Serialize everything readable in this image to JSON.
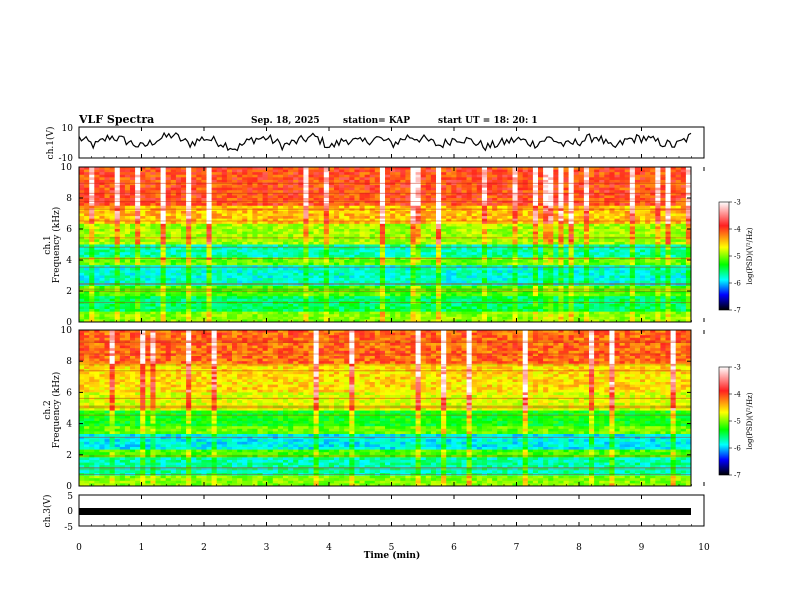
{
  "header": {
    "title": "VLF Spectra",
    "date": "Sep. 18, 2025",
    "station": "station= KAP",
    "start": "start  UT  =   18: 20: 1"
  },
  "colorbar": {
    "label": "log(PSD)(V²/Hz)",
    "ticks": [
      "-3",
      "-4",
      "-5",
      "-6",
      "-7"
    ],
    "colors": [
      "#ffffff",
      "#ff2020",
      "#ffff00",
      "#00ff00",
      "#00ffff",
      "#0000ff",
      "#000000"
    ]
  },
  "chart_data": [
    {
      "type": "line",
      "panel": "ch1-waveform",
      "ylabel": "ch.1(V)",
      "ytick_labels": [
        "10",
        "-10"
      ],
      "ylim": [
        -10,
        10
      ],
      "xlim": [
        0,
        10
      ],
      "series": [
        {
          "values": [
            3,
            -2,
            4,
            1,
            -3,
            2,
            5,
            -1,
            3,
            0,
            -4,
            2,
            3,
            -2,
            1,
            4,
            -3,
            2,
            0,
            3,
            -1,
            4,
            2,
            -2,
            3,
            1,
            -3,
            0,
            2,
            -1,
            3,
            -2,
            1,
            4,
            -4,
            2,
            3,
            0,
            -2,
            4
          ]
        }
      ]
    },
    {
      "type": "heatmap",
      "panel": "ch1-spectrogram",
      "ylabel": "ch.1\nFrequency (kHz)",
      "ytick_labels": [
        "0",
        "2",
        "4",
        "6",
        "8",
        "10"
      ],
      "ylim": [
        0,
        10
      ],
      "xlim": [
        0,
        10
      ],
      "bands_log_psd": [
        {
          "f": [
            0,
            0.6
          ],
          "v": -4.6
        },
        {
          "f": [
            0.6,
            1.7
          ],
          "v": -5.2
        },
        {
          "f": [
            1.7,
            2.4
          ],
          "v": -4.8
        },
        {
          "f": [
            2.4,
            3.6
          ],
          "v": -5.5
        },
        {
          "f": [
            3.6,
            4.2
          ],
          "v": -4.7
        },
        {
          "f": [
            4.2,
            5.0
          ],
          "v": -5.4
        },
        {
          "f": [
            5.0,
            6.3
          ],
          "v": -4.5
        },
        {
          "f": [
            6.3,
            7.5
          ],
          "v": -4.0
        },
        {
          "f": [
            7.5,
            10.0
          ],
          "v": -3.6
        }
      ]
    },
    {
      "type": "heatmap",
      "panel": "ch2-spectrogram",
      "ylabel": "ch.2\nFrequency (kHz)",
      "ytick_labels": [
        "0",
        "2",
        "4",
        "6",
        "8",
        "10"
      ],
      "ylim": [
        0,
        10
      ],
      "xlim": [
        0,
        10
      ],
      "bands_log_psd": [
        {
          "f": [
            0,
            0.6
          ],
          "v": -4.6
        },
        {
          "f": [
            0.6,
            1.8
          ],
          "v": -5.4
        },
        {
          "f": [
            1.8,
            2.4
          ],
          "v": -4.8
        },
        {
          "f": [
            2.4,
            3.3
          ],
          "v": -5.6
        },
        {
          "f": [
            3.3,
            3.9
          ],
          "v": -4.7
        },
        {
          "f": [
            3.9,
            4.8
          ],
          "v": -5.0
        },
        {
          "f": [
            4.8,
            6.0
          ],
          "v": -4.3
        },
        {
          "f": [
            6.0,
            7.8
          ],
          "v": -4.1
        },
        {
          "f": [
            7.8,
            10.0
          ],
          "v": -3.7
        }
      ]
    },
    {
      "type": "line",
      "panel": "ch3-waveform",
      "ylabel": "ch.3(V)",
      "ytick_labels": [
        "5",
        "0",
        "-5"
      ],
      "ylim": [
        -5,
        5
      ],
      "xlim": [
        0,
        10
      ],
      "series": [
        {
          "values": [
            -0.3,
            -0.3
          ]
        }
      ]
    }
  ],
  "xaxis": {
    "label": "Time  (min)",
    "ticks": [
      "0",
      "1",
      "2",
      "3",
      "4",
      "5",
      "6",
      "7",
      "8",
      "9",
      "10"
    ],
    "xlim": [
      0,
      10
    ]
  }
}
